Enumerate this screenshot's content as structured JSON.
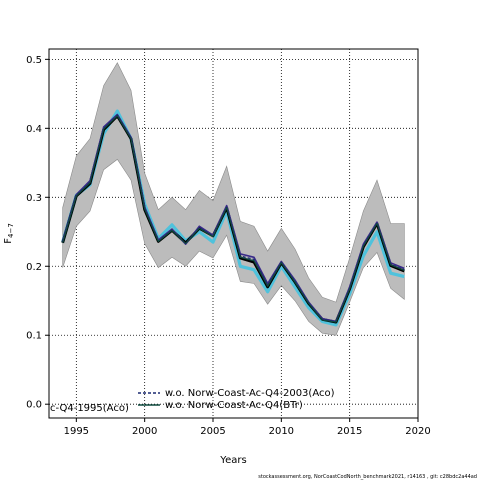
{
  "chart_data": {
    "type": "line",
    "xlabel": "Years",
    "ylabel": "F",
    "ylabel_sub": "4−7",
    "xlim": [
      1993,
      2020
    ],
    "ylim": [
      -0.02,
      0.515
    ],
    "grid": true,
    "xticks": [
      1995,
      2000,
      2005,
      2010,
      2015,
      2020
    ],
    "yticks": [
      0.0,
      0.1,
      0.2,
      0.3,
      0.4,
      0.5
    ],
    "years": [
      1994,
      1995,
      1996,
      1997,
      1998,
      1999,
      2000,
      2001,
      2002,
      2003,
      2004,
      2005,
      2006,
      2007,
      2008,
      2009,
      2010,
      2011,
      2012,
      2013,
      2014,
      2015,
      2016,
      2017,
      2018,
      2019
    ],
    "band": {
      "color": "#bcbcbc",
      "upper": [
        0.285,
        0.36,
        0.385,
        0.462,
        0.495,
        0.455,
        0.335,
        0.282,
        0.3,
        0.282,
        0.31,
        0.295,
        0.345,
        0.265,
        0.258,
        0.222,
        0.255,
        0.225,
        0.183,
        0.155,
        0.148,
        0.212,
        0.28,
        0.325,
        0.262,
        0.262
      ],
      "lower": [
        0.198,
        0.258,
        0.28,
        0.34,
        0.355,
        0.325,
        0.233,
        0.198,
        0.213,
        0.2,
        0.222,
        0.212,
        0.245,
        0.178,
        0.175,
        0.145,
        0.172,
        0.15,
        0.12,
        0.103,
        0.1,
        0.148,
        0.198,
        0.22,
        0.168,
        0.152
      ]
    },
    "series": [
      {
        "name": "",
        "color": "#4fc2dc",
        "width": 3.2,
        "dash": "",
        "values": [
          0.235,
          0.303,
          0.318,
          0.392,
          0.425,
          0.385,
          0.29,
          0.24,
          0.26,
          0.237,
          0.25,
          0.235,
          0.28,
          0.2,
          0.195,
          0.163,
          0.2,
          0.17,
          0.14,
          0.12,
          0.115,
          0.16,
          0.215,
          0.25,
          0.19,
          0.185
        ]
      },
      {
        "name": "",
        "color": "#000000",
        "width": 2.8,
        "dash": "",
        "values": [
          0.234,
          0.302,
          0.32,
          0.398,
          0.418,
          0.385,
          0.282,
          0.236,
          0.252,
          0.234,
          0.255,
          0.244,
          0.285,
          0.212,
          0.206,
          0.17,
          0.205,
          0.177,
          0.146,
          0.123,
          0.119,
          0.167,
          0.228,
          0.262,
          0.201,
          0.193
        ]
      },
      {
        "name": "",
        "color": "#3a2a8a",
        "width": 1.6,
        "dash": "",
        "values": [
          0.236,
          0.304,
          0.324,
          0.402,
          0.42,
          0.387,
          0.286,
          0.238,
          0.254,
          0.232,
          0.258,
          0.245,
          0.288,
          0.218,
          0.213,
          0.175,
          0.207,
          0.18,
          0.148,
          0.124,
          0.12,
          0.17,
          0.232,
          0.264,
          0.205,
          0.197
        ]
      },
      {
        "name": "w.o. Norw-Coast-Ac-Q4-2003(Aco)",
        "color": "#1a2a70",
        "width": 1.2,
        "dash": "3,2",
        "values": [
          0.235,
          0.303,
          0.322,
          0.4,
          0.419,
          0.386,
          0.284,
          0.237,
          0.253,
          0.233,
          0.256,
          0.244,
          0.286,
          0.215,
          0.21,
          0.173,
          0.206,
          0.178,
          0.147,
          0.123,
          0.12,
          0.168,
          0.23,
          0.263,
          0.203,
          0.195
        ]
      },
      {
        "name": "w.o. Norw-Coast-Ac-Q4(BTr)",
        "color": "#0e4a3e",
        "width": 1.2,
        "dash": "",
        "values": [
          0.234,
          0.302,
          0.321,
          0.399,
          0.418,
          0.385,
          0.283,
          0.236,
          0.252,
          0.233,
          0.255,
          0.243,
          0.285,
          0.213,
          0.208,
          0.171,
          0.205,
          0.177,
          0.146,
          0.122,
          0.119,
          0.167,
          0.229,
          0.262,
          0.202,
          0.194
        ]
      }
    ],
    "legend": {
      "placement": "bottom-left",
      "entries": [
        {
          "label": "w.o. Norw-Coast-Ac-Q4-2003(Aco)",
          "color": "#1a2a70",
          "dash": "3,2"
        },
        {
          "label": "w.o. Norw-Coast-Ac-Q4(BTr)",
          "color": "#0e4a3e",
          "dash": ""
        }
      ],
      "clipped_label": "c-Q4-1995(Aco)"
    }
  },
  "footer": "stockassessment.org, NorCoastCodNorth_benchmark2021, r14163 , git: c28bdc2a44ad"
}
